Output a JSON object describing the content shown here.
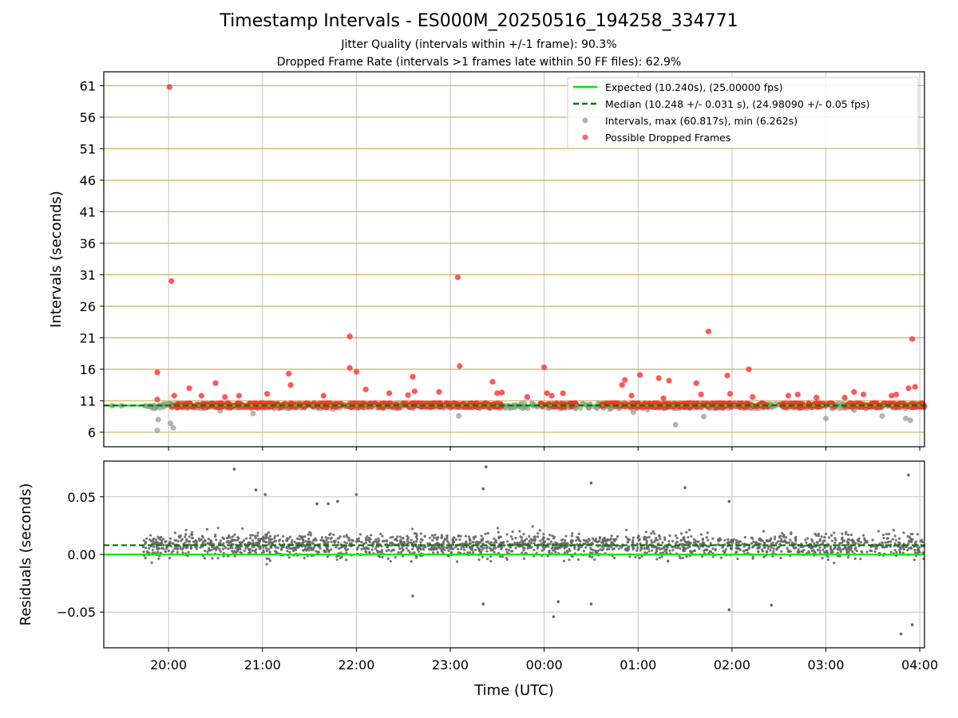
{
  "title": "Timestamp Intervals - ES000M_20250516_194258_334771",
  "subtitle_1": "Jitter Quality (intervals within +/-1 frame): 90.3%",
  "subtitle_2": "Dropped Frame Rate (intervals >1 frames late within 50 FF files): 62.9%",
  "colors": {
    "expected": "#00ee00",
    "median": "#007700",
    "intervals": "#999999",
    "dropped": "#ff3030",
    "residuals": "#666666",
    "hgrid_top": "#c8b25a",
    "vgrid": "#c4c4c4"
  },
  "chart_data": [
    {
      "type": "scatter",
      "ylabel": "Intervals (seconds)",
      "xlabel": "",
      "x_unit": "hours from 20:00 UTC",
      "xlim": [
        -0.69,
        8.05
      ],
      "ylim": [
        3.7,
        63.2
      ],
      "yticks": [
        6,
        11,
        16,
        21,
        26,
        31,
        36,
        41,
        46,
        51,
        56,
        61
      ],
      "grid": true,
      "legend_position": "top-right",
      "legend": [
        "Expected (10.240s), (25.00000 fps)",
        "Median (10.248 +/- 0.031 s), (24.98090 +/- 0.05 fps)",
        "Intervals, max (60.817s), min (6.262s)",
        "Possible Dropped Frames"
      ],
      "expected_interval": 10.24,
      "median_interval": 10.248,
      "interval_max": 60.817,
      "interval_min": 6.262,
      "series": [
        {
          "name": "Possible Dropped Frames",
          "x": [
            0.01,
            0.03,
            0.06,
            -0.12,
            -0.12,
            1.93,
            1.93,
            2.0,
            2.1,
            3.08,
            3.1,
            2.6,
            2.62,
            4.0,
            4.03,
            4.08,
            4.2,
            0.5,
            1.28,
            1.3,
            2.88,
            3.45,
            3.5,
            3.55,
            4.83,
            4.86,
            4.93,
            5.02,
            5.22,
            5.27,
            5.33,
            5.62,
            5.67,
            5.75,
            5.95,
            5.98,
            6.18,
            6.22,
            7.92,
            7.88,
            7.95,
            7.7,
            7.75,
            7.2,
            7.3,
            7.4,
            6.6,
            6.7,
            6.9,
            0.35,
            0.6,
            0.75,
            1.05,
            1.65,
            2.55,
            3.82,
            0.22,
            2.35
          ],
          "y": [
            60.8,
            30.0,
            11.8,
            15.5,
            11.2,
            21.2,
            16.2,
            15.6,
            12.8,
            30.6,
            16.5,
            14.8,
            12.5,
            16.3,
            12.2,
            11.8,
            12.2,
            13.8,
            15.3,
            13.5,
            12.4,
            14.0,
            12.2,
            12.3,
            13.5,
            14.3,
            11.8,
            15.1,
            14.6,
            11.4,
            14.2,
            13.8,
            12.0,
            22.0,
            15.0,
            12.1,
            16.0,
            11.6,
            20.8,
            13.0,
            13.2,
            11.8,
            12.0,
            11.5,
            12.4,
            12.0,
            11.8,
            12.0,
            11.5,
            11.8,
            11.6,
            11.8,
            12.1,
            11.8,
            11.9,
            11.6,
            13.0,
            12.2
          ]
        },
        {
          "name": "Intervals, max (60.817s), min (6.262s)",
          "x": [
            -0.12,
            -0.11,
            0.02,
            0.05,
            -0.6,
            -0.5,
            0.9,
            2.08,
            3.09,
            4.7,
            4.95,
            5.1,
            5.4,
            5.7,
            6.2,
            7.0,
            7.3,
            7.6,
            7.85,
            7.9,
            0.55,
            1.75
          ],
          "y": [
            6.3,
            8.0,
            7.4,
            6.7,
            10.2,
            10.2,
            9.0,
            9.9,
            8.6,
            9.7,
            9.2,
            9.6,
            7.2,
            8.5,
            9.8,
            8.2,
            9.5,
            8.6,
            8.2,
            7.9,
            9.4,
            9.7
          ]
        }
      ]
    },
    {
      "type": "scatter",
      "ylabel": "Residuals (seconds)",
      "xlabel": "Time (UTC)",
      "xlim": [
        -0.69,
        8.05
      ],
      "ylim": [
        -0.081,
        0.081
      ],
      "yticks": [
        "−0.05",
        "0.00",
        "0.05"
      ],
      "xticks": [
        "20:00",
        "21:00",
        "22:00",
        "23:00",
        "00:00",
        "01:00",
        "02:00",
        "03:00",
        "04:00"
      ],
      "grid": true,
      "expected_residual": 0.0,
      "median_residual": 0.008,
      "series": [
        {
          "name": "Residuals",
          "x": [
            0.7,
            3.38,
            0.93,
            1.03,
            2.0,
            3.35,
            4.5,
            5.5,
            7.88,
            7.92,
            7.8,
            4.1,
            4.15,
            5.97,
            6.42,
            5.97,
            1.8,
            1.7,
            3.35,
            2.6,
            4.5,
            1.58
          ],
          "y": [
            0.074,
            0.076,
            0.056,
            0.052,
            0.052,
            0.057,
            0.062,
            0.058,
            0.069,
            -0.061,
            -0.069,
            -0.054,
            -0.041,
            -0.048,
            -0.044,
            0.046,
            0.046,
            0.044,
            -0.043,
            -0.036,
            -0.043,
            0.044
          ]
        }
      ]
    }
  ]
}
